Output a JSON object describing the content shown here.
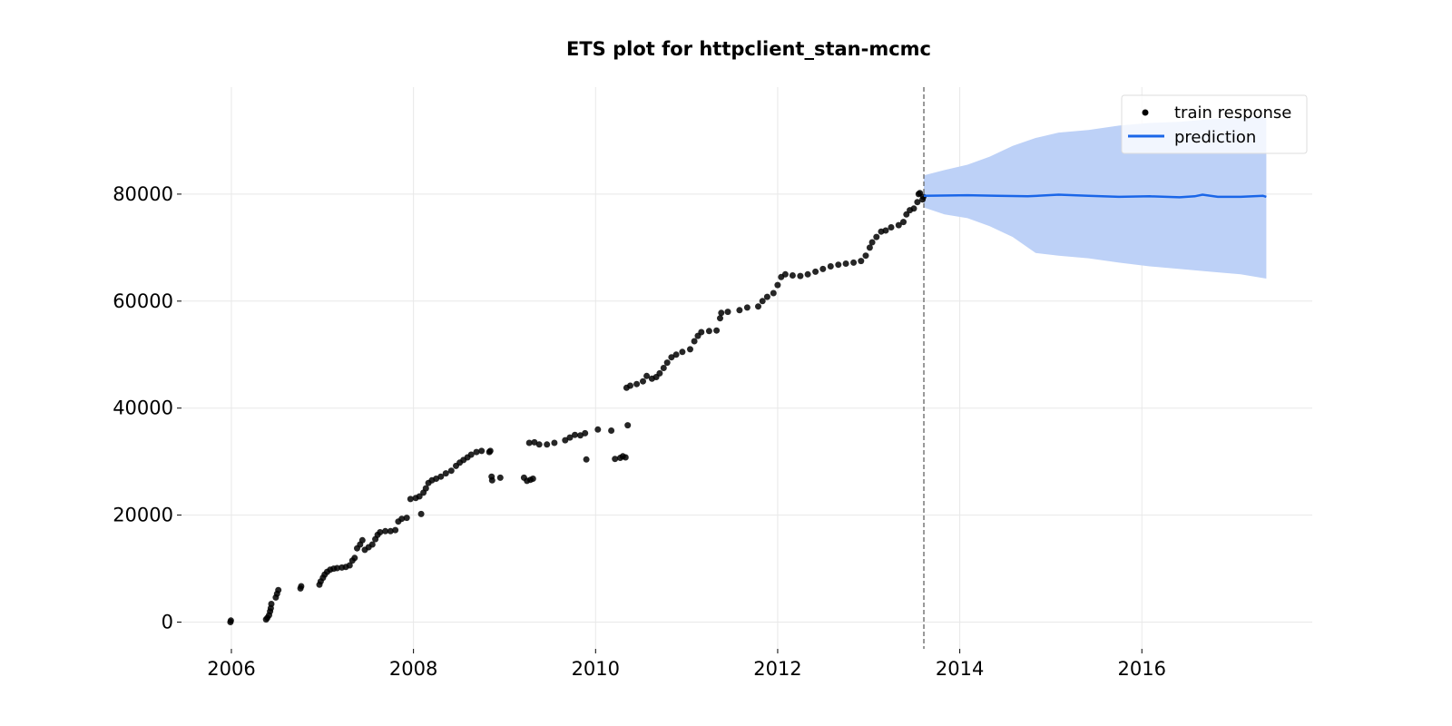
{
  "chart_data": {
    "type": "scatter",
    "title": "ETS plot for httpclient_stan-mcmc",
    "xlabel": "",
    "ylabel": "",
    "x_ticks": [
      "2006",
      "2008",
      "2010",
      "2012",
      "2014",
      "2016"
    ],
    "y_ticks": [
      "0",
      "20000",
      "40000",
      "60000",
      "80000"
    ],
    "xlim": [
      "2005-06-15",
      "2017-11-15"
    ],
    "ylim": [
      -5000,
      100000
    ],
    "grid": true,
    "legend_position": "top-right",
    "cutoff_date": "2013-08-10",
    "colors": {
      "train_response": "#000000",
      "prediction": "#1a66e8",
      "interval": "#bdd1f7",
      "cutoff_line": "#777777"
    },
    "series": [
      {
        "name": "train response",
        "type": "scatter",
        "points": [
          [
            "2005-12-28",
            0
          ],
          [
            "2005-12-30",
            300
          ],
          [
            "2006-05-20",
            500
          ],
          [
            "2006-05-25",
            800
          ],
          [
            "2006-06-01",
            1300
          ],
          [
            "2006-06-05",
            2000
          ],
          [
            "2006-06-08",
            2600
          ],
          [
            "2006-06-10",
            3400
          ],
          [
            "2006-06-28",
            4600
          ],
          [
            "2006-07-03",
            5300
          ],
          [
            "2006-07-08",
            6000
          ],
          [
            "2006-10-05",
            6300
          ],
          [
            "2006-10-08",
            6700
          ],
          [
            "2006-12-20",
            7000
          ],
          [
            "2006-12-25",
            7600
          ],
          [
            "2007-01-03",
            8300
          ],
          [
            "2007-01-10",
            8900
          ],
          [
            "2007-01-20",
            9400
          ],
          [
            "2007-02-01",
            9800
          ],
          [
            "2007-02-15",
            10000
          ],
          [
            "2007-03-01",
            10100
          ],
          [
            "2007-03-20",
            10200
          ],
          [
            "2007-04-05",
            10300
          ],
          [
            "2007-04-20",
            10600
          ],
          [
            "2007-05-01",
            11500
          ],
          [
            "2007-05-10",
            12000
          ],
          [
            "2007-05-20",
            13800
          ],
          [
            "2007-06-01",
            14500
          ],
          [
            "2007-06-10",
            15300
          ],
          [
            "2007-06-20",
            13500
          ],
          [
            "2007-07-05",
            14000
          ],
          [
            "2007-07-20",
            14500
          ],
          [
            "2007-08-01",
            15500
          ],
          [
            "2007-08-10",
            16300
          ],
          [
            "2007-08-20",
            16800
          ],
          [
            "2007-09-10",
            17000
          ],
          [
            "2007-10-01",
            17000
          ],
          [
            "2007-10-20",
            17200
          ],
          [
            "2007-11-01",
            18800
          ],
          [
            "2007-11-15",
            19300
          ],
          [
            "2007-12-05",
            19500
          ],
          [
            "2007-12-20",
            23000
          ],
          [
            "2008-01-10",
            23200
          ],
          [
            "2008-01-25",
            23500
          ],
          [
            "2008-02-01",
            20200
          ],
          [
            "2008-02-10",
            24200
          ],
          [
            "2008-02-20",
            25000
          ],
          [
            "2008-03-01",
            26000
          ],
          [
            "2008-03-15",
            26500
          ],
          [
            "2008-04-01",
            26800
          ],
          [
            "2008-04-20",
            27200
          ],
          [
            "2008-05-10",
            27800
          ],
          [
            "2008-06-01",
            28300
          ],
          [
            "2008-06-20",
            29200
          ],
          [
            "2008-07-05",
            29800
          ],
          [
            "2008-07-20",
            30300
          ],
          [
            "2008-08-05",
            30800
          ],
          [
            "2008-08-20",
            31300
          ],
          [
            "2008-09-10",
            31800
          ],
          [
            "2008-10-01",
            32000
          ],
          [
            "2008-11-01",
            31800
          ],
          [
            "2008-11-05",
            32000
          ],
          [
            "2008-11-10",
            27200
          ],
          [
            "2008-11-12",
            26500
          ],
          [
            "2008-12-15",
            27000
          ],
          [
            "2009-03-20",
            27000
          ],
          [
            "2009-04-01",
            26400
          ],
          [
            "2009-04-15",
            26600
          ],
          [
            "2009-04-25",
            26800
          ],
          [
            "2009-04-10",
            33500
          ],
          [
            "2009-05-01",
            33600
          ],
          [
            "2009-05-20",
            33200
          ],
          [
            "2009-06-20",
            33200
          ],
          [
            "2009-07-20",
            33500
          ],
          [
            "2009-09-01",
            34000
          ],
          [
            "2009-09-20",
            34500
          ],
          [
            "2009-10-10",
            35000
          ],
          [
            "2009-11-01",
            34900
          ],
          [
            "2009-11-20",
            35300
          ],
          [
            "2009-11-25",
            30400
          ],
          [
            "2010-01-10",
            36000
          ],
          [
            "2010-03-05",
            35800
          ],
          [
            "2010-03-20",
            30500
          ],
          [
            "2010-04-10",
            30700
          ],
          [
            "2010-04-20",
            31000
          ],
          [
            "2010-05-01",
            30800
          ],
          [
            "2010-05-10",
            36800
          ],
          [
            "2010-05-05",
            43800
          ],
          [
            "2010-05-20",
            44200
          ],
          [
            "2010-06-15",
            44500
          ],
          [
            "2010-07-10",
            45000
          ],
          [
            "2010-07-25",
            46000
          ],
          [
            "2010-08-15",
            45500
          ],
          [
            "2010-09-01",
            45800
          ],
          [
            "2010-09-15",
            46500
          ],
          [
            "2010-10-01",
            47500
          ],
          [
            "2010-10-15",
            48500
          ],
          [
            "2010-11-01",
            49500
          ],
          [
            "2010-11-20",
            50000
          ],
          [
            "2010-12-15",
            50500
          ],
          [
            "2011-01-15",
            51000
          ],
          [
            "2011-02-01",
            52500
          ],
          [
            "2011-02-15",
            53500
          ],
          [
            "2011-03-01",
            54200
          ],
          [
            "2011-04-01",
            54400
          ],
          [
            "2011-05-01",
            54500
          ],
          [
            "2011-05-15",
            56800
          ],
          [
            "2011-05-20",
            57800
          ],
          [
            "2011-06-15",
            58000
          ],
          [
            "2011-08-01",
            58300
          ],
          [
            "2011-09-01",
            58800
          ],
          [
            "2011-10-15",
            59000
          ],
          [
            "2011-11-01",
            60000
          ],
          [
            "2011-11-20",
            60800
          ],
          [
            "2011-12-15",
            61500
          ],
          [
            "2012-01-01",
            63000
          ],
          [
            "2012-01-15",
            64500
          ],
          [
            "2012-02-01",
            65000
          ],
          [
            "2012-03-01",
            64800
          ],
          [
            "2012-04-01",
            64700
          ],
          [
            "2012-05-01",
            65000
          ],
          [
            "2012-06-01",
            65500
          ],
          [
            "2012-07-01",
            66000
          ],
          [
            "2012-08-01",
            66500
          ],
          [
            "2012-09-01",
            66800
          ],
          [
            "2012-10-01",
            67000
          ],
          [
            "2012-11-01",
            67200
          ],
          [
            "2012-12-01",
            67500
          ],
          [
            "2012-12-20",
            68500
          ],
          [
            "2013-01-05",
            70000
          ],
          [
            "2013-01-15",
            71000
          ],
          [
            "2013-02-01",
            72000
          ],
          [
            "2013-02-20",
            73000
          ],
          [
            "2013-03-10",
            73200
          ],
          [
            "2013-04-01",
            73800
          ],
          [
            "2013-05-01",
            74200
          ],
          [
            "2013-05-20",
            74800
          ],
          [
            "2013-06-01",
            76200
          ],
          [
            "2013-06-15",
            77000
          ],
          [
            "2013-07-01",
            77300
          ],
          [
            "2013-07-15",
            78500
          ],
          [
            "2013-07-20",
            80000
          ],
          [
            "2013-07-25",
            80200
          ],
          [
            "2013-08-05",
            79000
          ],
          [
            "2013-08-08",
            79500
          ]
        ]
      },
      {
        "name": "prediction",
        "type": "line",
        "points": [
          [
            "2013-08-10",
            79700
          ],
          [
            "2014-02-01",
            79800
          ],
          [
            "2014-06-01",
            79700
          ],
          [
            "2014-10-01",
            79600
          ],
          [
            "2015-02-01",
            79900
          ],
          [
            "2015-06-01",
            79700
          ],
          [
            "2015-10-01",
            79500
          ],
          [
            "2016-02-01",
            79600
          ],
          [
            "2016-06-01",
            79400
          ],
          [
            "2016-08-01",
            79600
          ],
          [
            "2016-09-01",
            79900
          ],
          [
            "2016-11-01",
            79500
          ],
          [
            "2017-02-01",
            79500
          ],
          [
            "2017-05-01",
            79700
          ],
          [
            "2017-05-15",
            79500
          ]
        ]
      }
    ],
    "interval": {
      "upper": [
        [
          "2013-08-10",
          83500
        ],
        [
          "2013-11-01",
          84500
        ],
        [
          "2014-02-01",
          85500
        ],
        [
          "2014-05-01",
          87000
        ],
        [
          "2014-08-01",
          89000
        ],
        [
          "2014-11-01",
          90500
        ],
        [
          "2015-02-01",
          91500
        ],
        [
          "2015-06-01",
          92000
        ],
        [
          "2015-10-01",
          92800
        ],
        [
          "2016-02-01",
          93300
        ],
        [
          "2016-06-01",
          93500
        ],
        [
          "2016-10-01",
          94000
        ],
        [
          "2017-02-01",
          94200
        ],
        [
          "2017-05-15",
          94500
        ]
      ],
      "lower": [
        [
          "2013-08-10",
          77500
        ],
        [
          "2013-11-01",
          76200
        ],
        [
          "2014-02-01",
          75500
        ],
        [
          "2014-05-01",
          74000
        ],
        [
          "2014-08-01",
          72000
        ],
        [
          "2014-11-01",
          69000
        ],
        [
          "2015-02-01",
          68500
        ],
        [
          "2015-06-01",
          68000
        ],
        [
          "2015-10-01",
          67200
        ],
        [
          "2016-02-01",
          66500
        ],
        [
          "2016-06-01",
          66000
        ],
        [
          "2016-10-01",
          65500
        ],
        [
          "2017-02-01",
          65000
        ],
        [
          "2017-05-15",
          64200
        ]
      ]
    }
  }
}
